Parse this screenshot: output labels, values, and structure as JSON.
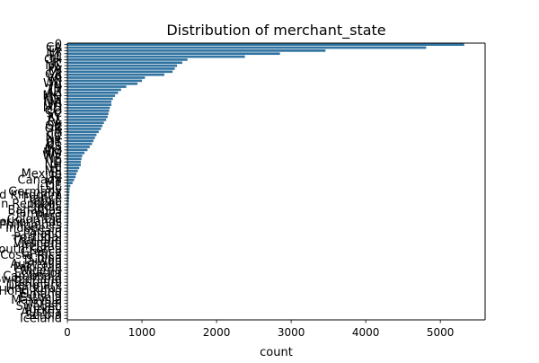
{
  "chart_data": {
    "type": "bar",
    "orientation": "horizontal",
    "title": "Distribution of merchant_state",
    "xlabel": "count",
    "ylabel": "",
    "xlim": [
      0,
      5600
    ],
    "xticks": [
      0,
      1000,
      2000,
      3000,
      4000,
      5000
    ],
    "xtick_labels": [
      "0",
      "1000",
      "2000",
      "3000",
      "4000",
      "5000"
    ],
    "bar_color": "#3274a1",
    "grid": false,
    "legend": "none",
    "categories": [
      "0",
      "CA",
      "TX",
      "NY",
      "FL",
      "OH",
      "IL",
      "NC",
      "PA",
      "MI",
      "GA",
      "VA",
      "NJ",
      "WA",
      "IN",
      "TN",
      "AZ",
      "MO",
      "MN",
      "MA",
      "WI",
      "MD",
      "CO",
      "SC",
      "KY",
      "AL",
      "LA",
      "OK",
      "OR",
      "IA",
      "CT",
      "NV",
      "AR",
      "UT",
      "KS",
      "MS",
      "NM",
      "WV",
      "NE",
      "ID",
      "NH",
      "HI",
      "ME",
      "Mexico",
      "RI",
      "Canada",
      "MT",
      "DE",
      "Italy",
      "Germany",
      "United Kingdom",
      "France",
      "Japan",
      "Dominican Republic",
      "India",
      "Bahamas",
      "Jamaica",
      "Peru",
      "Colombia",
      "Netherlands",
      "Philippines",
      "Indonesia",
      "Spain",
      "Poland",
      "Portugal",
      "Thailand",
      "Vietnam",
      "Ireland",
      "South Korea",
      "Greece",
      "Costa Rica",
      "China",
      "Taiwan",
      "Australia",
      "Pakistan",
      "Nigeria",
      "Ecuador",
      "Cambodia",
      "Switzerland",
      "Belgium",
      "Denmark",
      "Honduras",
      "Hong Kong",
      "Finland",
      "Estonia",
      "Malaysia",
      "Israel",
      "Sweden",
      "Turkey",
      "Austria",
      "Serbia",
      "Iceland"
    ],
    "values": [
      5320,
      4810,
      3460,
      2850,
      2380,
      1610,
      1540,
      1470,
      1440,
      1410,
      1300,
      1040,
      1000,
      940,
      790,
      720,
      680,
      640,
      610,
      590,
      590,
      570,
      560,
      550,
      540,
      520,
      490,
      470,
      450,
      420,
      390,
      370,
      350,
      330,
      300,
      270,
      230,
      200,
      190,
      180,
      180,
      160,
      140,
      120,
      110,
      90,
      70,
      40,
      30,
      28,
      26,
      24,
      22,
      20,
      18,
      17,
      16,
      15,
      14,
      13,
      12,
      11,
      10,
      9,
      9,
      8,
      8,
      7,
      7,
      6,
      6,
      5,
      5,
      5,
      4,
      4,
      4,
      3,
      3,
      3,
      3,
      2,
      2,
      2,
      2,
      2,
      1,
      1,
      1,
      1,
      1,
      1
    ]
  }
}
